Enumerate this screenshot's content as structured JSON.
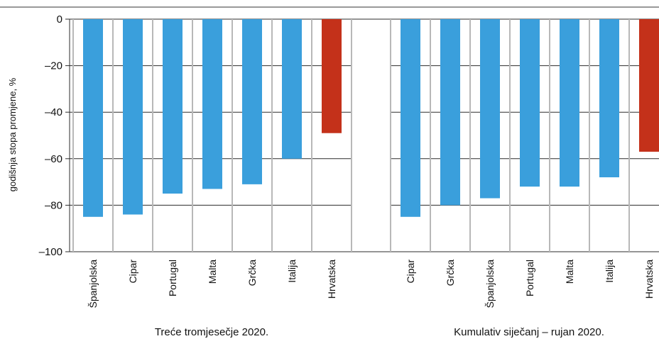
{
  "chart_data": {
    "type": "bar",
    "ylabel": "godišnja stopa promjene, %",
    "ylim": [
      -100,
      0
    ],
    "yticks": [
      0,
      -20,
      -40,
      -60,
      -80,
      -100
    ],
    "ytick_labels": [
      "0",
      "–20",
      "–40",
      "–60",
      "–80",
      "–100"
    ],
    "grid": true,
    "colors": {
      "default": "#3a9fdc",
      "highlight": "#c4311a"
    },
    "groups": [
      {
        "label": "Treće tromjesečje 2020.",
        "categories": [
          "Španjolska",
          "Cipar",
          "Portugal",
          "Malta",
          "Grčka",
          "Italija",
          "Hrvatska"
        ],
        "values": [
          -85,
          -84,
          -75,
          -73,
          -71,
          -60,
          -49
        ],
        "highlight": [
          false,
          false,
          false,
          false,
          false,
          false,
          true
        ]
      },
      {
        "label": "Kumulativ siječanj – rujan 2020.",
        "categories": [
          "Cipar",
          "Grčka",
          "Španjolska",
          "Portugal",
          "Malta",
          "Italija",
          "Hrvatska"
        ],
        "values": [
          -85,
          -80,
          -77,
          -72,
          -72,
          -68,
          -57
        ],
        "highlight": [
          false,
          false,
          false,
          false,
          false,
          false,
          true
        ]
      }
    ]
  }
}
